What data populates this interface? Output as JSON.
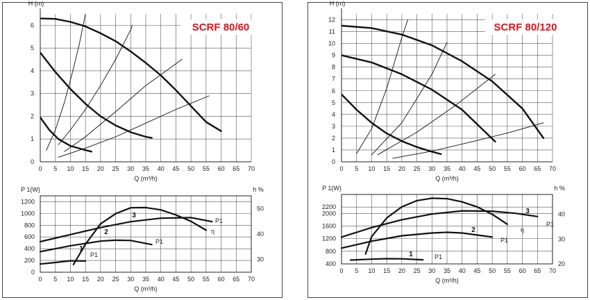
{
  "chart_data": [
    {
      "type": "line",
      "title": "SCRF 80/60",
      "xlabel": "Q (m³/h)",
      "ylabel": "H (m)",
      "xlim": [
        0,
        70
      ],
      "ylim": [
        0,
        6.5
      ],
      "xticks": [
        "0",
        "5",
        "10",
        "15",
        "20",
        "25",
        "30",
        "35",
        "40",
        "45",
        "50",
        "55",
        "60",
        "65",
        "70"
      ],
      "yticks": [
        "0",
        "1",
        "2",
        "3",
        "4",
        "5",
        "6"
      ],
      "grid": true,
      "series": [
        {
          "label": "",
          "points": [
            [
              0,
              6.3
            ],
            [
              5,
              6.28
            ],
            [
              10,
              6.15
            ],
            [
              15,
              5.95
            ],
            [
              20,
              5.65
            ],
            [
              25,
              5.3
            ],
            [
              30,
              4.85
            ],
            [
              35,
              4.35
            ],
            [
              40,
              3.8
            ],
            [
              45,
              3.15
            ],
            [
              50,
              2.45
            ],
            [
              55,
              1.75
            ],
            [
              60,
              1.35
            ]
          ],
          "weight": "bold"
        },
        {
          "label": "",
          "points": [
            [
              0,
              4.8
            ],
            [
              5,
              3.95
            ],
            [
              10,
              3.2
            ],
            [
              15,
              2.55
            ],
            [
              20,
              2.0
            ],
            [
              25,
              1.6
            ],
            [
              30,
              1.3
            ],
            [
              35,
              1.1
            ],
            [
              37,
              1.05
            ]
          ],
          "weight": "bold"
        },
        {
          "label": "",
          "points": [
            [
              0,
              1.95
            ],
            [
              3,
              1.4
            ],
            [
              6,
              1.0
            ],
            [
              10,
              0.7
            ],
            [
              14,
              0.55
            ],
            [
              17,
              0.45
            ]
          ],
          "weight": "bold"
        },
        {
          "label": "",
          "points": [
            [
              2,
              0.5
            ],
            [
              5,
              1.4
            ],
            [
              8,
              2.6
            ],
            [
              11,
              4.1
            ],
            [
              13,
              5.2
            ],
            [
              15,
              6.5
            ]
          ],
          "weight": "thin"
        },
        {
          "label": "",
          "points": [
            [
              6,
              0.75
            ],
            [
              10,
              1.4
            ],
            [
              15,
              2.3
            ],
            [
              20,
              3.35
            ],
            [
              25,
              4.5
            ],
            [
              30,
              5.8
            ],
            [
              30.5,
              6.0
            ]
          ],
          "weight": "thin"
        },
        {
          "label": "",
          "points": [
            [
              8,
              0.45
            ],
            [
              15,
              1.1
            ],
            [
              25,
              2.2
            ],
            [
              35,
              3.35
            ],
            [
              47,
              4.5
            ]
          ],
          "weight": "thin"
        },
        {
          "label": "",
          "points": [
            [
              6,
              0.2
            ],
            [
              15,
              0.6
            ],
            [
              25,
              1.1
            ],
            [
              35,
              1.7
            ],
            [
              45,
              2.3
            ],
            [
              56,
              2.9
            ]
          ],
          "weight": "thin"
        }
      ],
      "power": {
        "ylabel_left": "P 1(W)",
        "ylabel_right": "h %",
        "xlabel": "Q (m³/h)",
        "xlim": [
          0,
          70
        ],
        "ylim": [
          0,
          1300
        ],
        "xticks": [
          "0",
          "5",
          "10",
          "15",
          "20",
          "25",
          "30",
          "35",
          "40",
          "45",
          "50",
          "55",
          "60",
          "65",
          "70"
        ],
        "yticks_left": [
          "0",
          "200",
          "400",
          "600",
          "800",
          "1000",
          "1200"
        ],
        "yticks_right": [
          "30",
          "40",
          "50"
        ],
        "right_ylim": [
          25,
          55
        ],
        "series": [
          {
            "label": "P1",
            "points": [
              [
                0,
                520
              ],
              [
                10,
                640
              ],
              [
                20,
                760
              ],
              [
                30,
                860
              ],
              [
                40,
                920
              ],
              [
                50,
                930
              ],
              [
                57,
                860
              ]
            ],
            "weight": "bold",
            "number": "3"
          },
          {
            "label": "P1",
            "points": [
              [
                0,
                350
              ],
              [
                10,
                450
              ],
              [
                20,
                530
              ],
              [
                25,
                545
              ],
              [
                30,
                540
              ],
              [
                37,
                470
              ]
            ],
            "weight": "bold",
            "number": "2"
          },
          {
            "label": "P1",
            "points": [
              [
                0,
                140
              ],
              [
                5,
                165
              ],
              [
                10,
                195
              ],
              [
                15,
                190
              ]
            ],
            "weight": "bold",
            "number": "1"
          },
          {
            "label": "η",
            "points": [
              [
                11,
                28
              ],
              [
                15,
                36
              ],
              [
                20,
                44
              ],
              [
                25,
                48
              ],
              [
                30,
                50.3
              ],
              [
                35,
                50.4
              ],
              [
                40,
                49.5
              ],
              [
                45,
                47.5
              ],
              [
                50,
                45
              ],
              [
                55,
                41.5
              ]
            ],
            "weight": "bold",
            "axis": "right"
          }
        ]
      }
    },
    {
      "type": "line",
      "title": "SCRF 80/120",
      "xlabel": "Q (m³/h)",
      "ylabel": "H (m)",
      "xlim": [
        0,
        70
      ],
      "ylim": [
        0,
        12.5
      ],
      "xticks": [
        "0",
        "5",
        "10",
        "15",
        "20",
        "25",
        "30",
        "35",
        "40",
        "45",
        "50",
        "55",
        "60",
        "65",
        "70"
      ],
      "yticks": [
        "0",
        "1",
        "2",
        "3",
        "4",
        "5",
        "6",
        "7",
        "8",
        "9",
        "10",
        "11",
        "12"
      ],
      "grid": true,
      "series": [
        {
          "label": "",
          "points": [
            [
              0,
              11.5
            ],
            [
              10,
              11.3
            ],
            [
              20,
              10.75
            ],
            [
              30,
              9.85
            ],
            [
              40,
              8.5
            ],
            [
              50,
              6.8
            ],
            [
              60,
              4.5
            ],
            [
              67,
              2.0
            ]
          ],
          "weight": "bold"
        },
        {
          "label": "",
          "points": [
            [
              0,
              9.0
            ],
            [
              10,
              8.4
            ],
            [
              20,
              7.4
            ],
            [
              30,
              6.1
            ],
            [
              40,
              4.4
            ],
            [
              51,
              1.7
            ]
          ],
          "weight": "bold"
        },
        {
          "label": "",
          "points": [
            [
              0,
              5.7
            ],
            [
              5,
              4.4
            ],
            [
              10,
              3.3
            ],
            [
              15,
              2.4
            ],
            [
              20,
              1.75
            ],
            [
              25,
              1.25
            ],
            [
              30,
              0.85
            ],
            [
              33,
              0.65
            ]
          ],
          "weight": "bold"
        },
        {
          "label": "",
          "points": [
            [
              5,
              0.7
            ],
            [
              10,
              2.8
            ],
            [
              15,
              6.2
            ],
            [
              20,
              10.5
            ],
            [
              22,
              12
            ]
          ],
          "weight": "thin"
        },
        {
          "label": "",
          "points": [
            [
              10,
              0.6
            ],
            [
              20,
              3.3
            ],
            [
              30,
              7.4
            ],
            [
              35,
              10.1
            ]
          ],
          "weight": "thin"
        },
        {
          "label": "",
          "points": [
            [
              12,
              0.6
            ],
            [
              25,
              2.5
            ],
            [
              38,
              4.8
            ],
            [
              51,
              7.4
            ]
          ],
          "weight": "thin"
        },
        {
          "label": "",
          "points": [
            [
              17,
              0.3
            ],
            [
              30,
              0.9
            ],
            [
              45,
              1.8
            ],
            [
              56,
              2.5
            ],
            [
              67,
              3.3
            ]
          ],
          "weight": "thin"
        }
      ],
      "power": {
        "ylabel_left": "P 1(W)",
        "ylabel_right": "h %",
        "xlabel": "Q (m³/h)",
        "xlim": [
          0,
          70
        ],
        "ylim": [
          400,
          2600
        ],
        "xticks": [
          "0",
          "5",
          "10",
          "15",
          "20",
          "25",
          "30",
          "35",
          "40",
          "45",
          "50",
          "55",
          "60",
          "65",
          "70"
        ],
        "yticks_left": [
          "400",
          "800",
          "1200",
          "1600",
          "2000",
          "2200"
        ],
        "yticks_right_values": [
          20,
          30,
          40
        ],
        "yticks_right": [
          "20",
          "30",
          "40"
        ],
        "right_ylim": [
          20,
          48
        ],
        "series": [
          {
            "label": "P1",
            "points": [
              [
                0,
                1250
              ],
              [
                10,
                1550
              ],
              [
                20,
                1800
              ],
              [
                30,
                1980
              ],
              [
                40,
                2080
              ],
              [
                50,
                2070
              ],
              [
                58,
                2000
              ],
              [
                65,
                1900
              ]
            ],
            "weight": "bold",
            "number": "3"
          },
          {
            "label": "P1",
            "points": [
              [
                0,
                900
              ],
              [
                10,
                1120
              ],
              [
                20,
                1290
              ],
              [
                30,
                1380
              ],
              [
                35,
                1400
              ],
              [
                40,
                1380
              ],
              [
                50,
                1250
              ]
            ],
            "weight": "bold",
            "number": "2"
          },
          {
            "label": "P1",
            "points": [
              [
                3,
                520
              ],
              [
                10,
                550
              ],
              [
                15,
                565
              ],
              [
                20,
                560
              ],
              [
                27,
                530
              ]
            ],
            "weight": "bold",
            "number": "1"
          },
          {
            "label": "η",
            "points": [
              [
                8,
                24
              ],
              [
                10,
                31
              ],
              [
                15,
                38.5
              ],
              [
                20,
                43
              ],
              [
                25,
                45.5
              ],
              [
                30,
                46.5
              ],
              [
                35,
                46.3
              ],
              [
                40,
                45
              ],
              [
                45,
                43
              ],
              [
                50,
                40
              ],
              [
                55,
                36
              ]
            ],
            "weight": "bold",
            "axis": "right"
          }
        ]
      }
    }
  ]
}
